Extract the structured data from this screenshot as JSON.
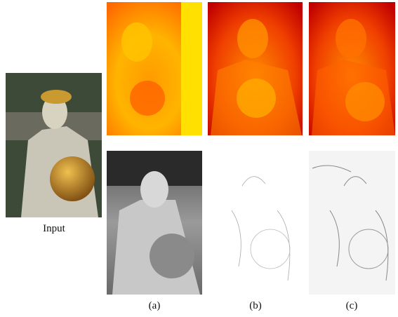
{
  "labels": [
    "Input",
    "(a)",
    "(b)",
    "(c)"
  ]
}
